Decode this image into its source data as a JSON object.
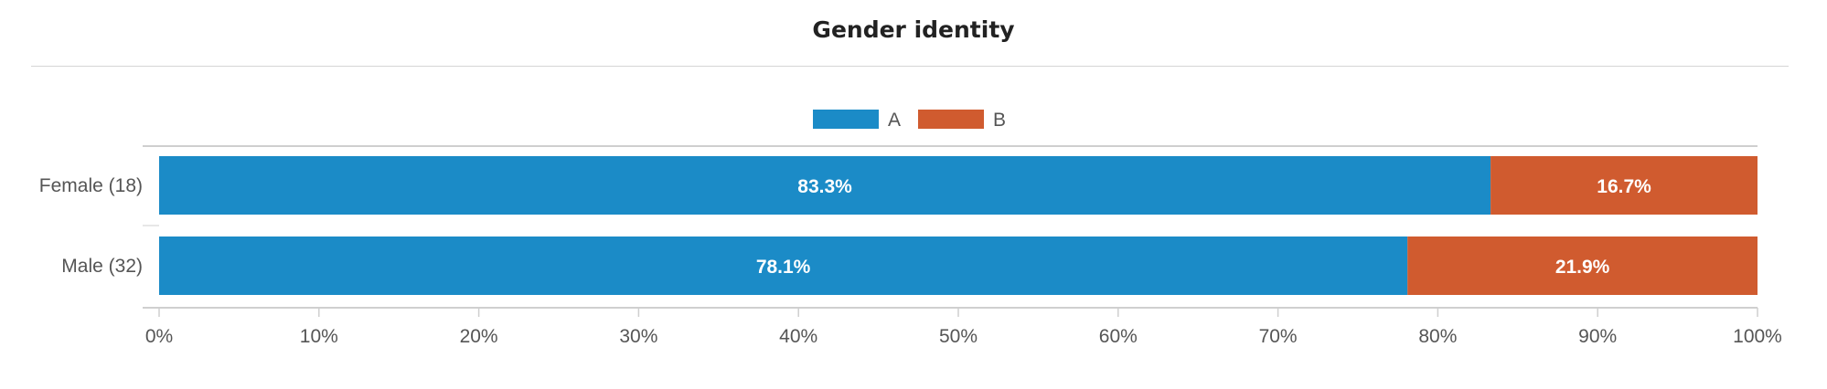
{
  "chart_data": {
    "type": "bar",
    "orientation": "horizontal",
    "stacked": true,
    "title": "Gender identity",
    "categories": [
      "Female (18)",
      "Male (32)"
    ],
    "series": [
      {
        "name": "A",
        "color": "#1b8bc7",
        "values": [
          83.3,
          78.1
        ],
        "labels": [
          "83.3%",
          "78.1%"
        ]
      },
      {
        "name": "B",
        "color": "#d05b2f",
        "values": [
          16.7,
          21.9
        ],
        "labels": [
          "16.7%",
          "21.9%"
        ]
      }
    ],
    "xlim": [
      0,
      100
    ],
    "xticks": [
      "0%",
      "10%",
      "20%",
      "30%",
      "40%",
      "50%",
      "60%",
      "70%",
      "80%",
      "90%",
      "100%"
    ],
    "legend_position": "top-center",
    "grid": false
  }
}
